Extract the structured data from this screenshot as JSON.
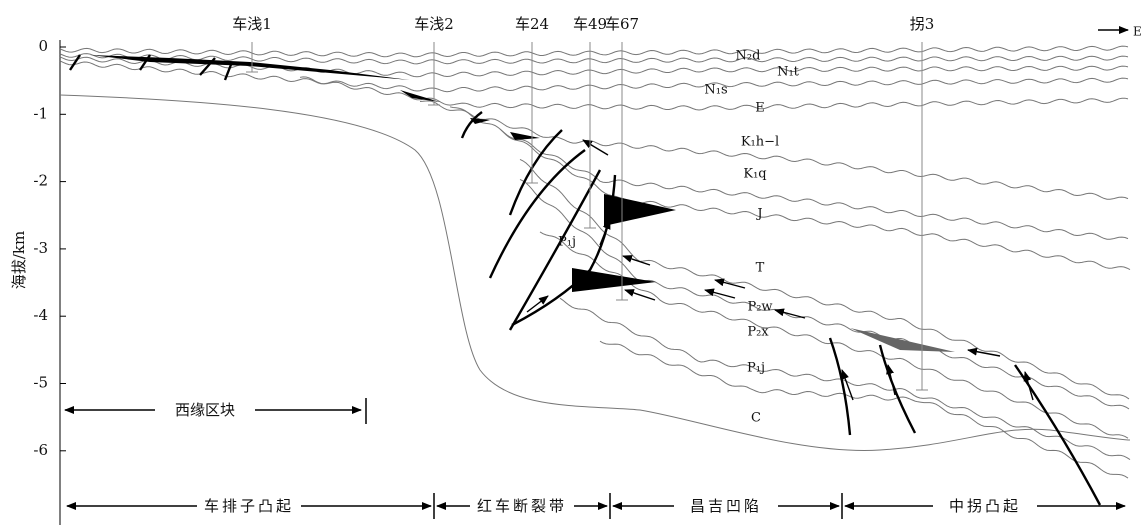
{
  "wells": [
    "车浅1",
    "车浅2",
    "车24",
    "车49",
    "车67",
    "拐3"
  ],
  "direction": "E",
  "axis": {
    "label": "海拔/km",
    "ticks": [
      0,
      -1,
      -2,
      -3,
      -4,
      -5,
      -6
    ]
  },
  "layers": [
    "N₂d",
    "N₁t",
    "N₁s",
    "E",
    "K₁h−l",
    "K₁q",
    "J",
    "P₁j",
    "T",
    "P₂w",
    "P₂x",
    "P₁j",
    "C"
  ],
  "block": "西缘区块",
  "regions": [
    "车排子凸起",
    "红车断裂带",
    "昌吉凹陷",
    "中拐凸起"
  ]
}
